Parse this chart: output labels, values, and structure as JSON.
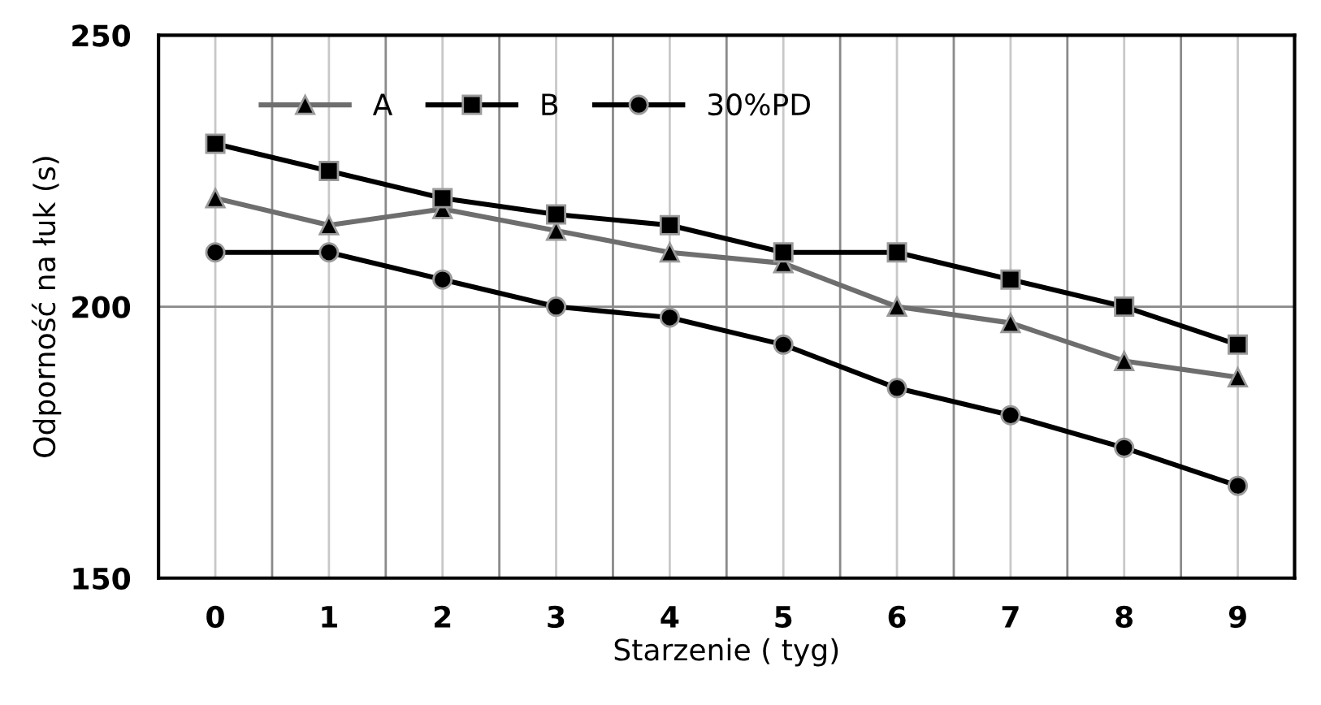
{
  "chart_data": {
    "type": "line",
    "xlabel": "Starzenie ( tyg)",
    "ylabel": "Odporność na łuk (s)",
    "categories": [
      "0",
      "1",
      "2",
      "3",
      "4",
      "5",
      "6",
      "7",
      "8",
      "9"
    ],
    "series": [
      {
        "name": "A",
        "color": "#6e6e6e",
        "marker": "triangle",
        "values": [
          220,
          215,
          218,
          214,
          210,
          208,
          200,
          197,
          190,
          187
        ]
      },
      {
        "name": "B",
        "color": "#000000",
        "marker": "square",
        "values": [
          230,
          225,
          220,
          217,
          215,
          210,
          210,
          205,
          200,
          193
        ]
      },
      {
        "name": "30%PD",
        "color": "#000000",
        "marker": "circle",
        "values": [
          210,
          210,
          205,
          200,
          198,
          193,
          185,
          180,
          174,
          167
        ]
      }
    ],
    "ylim": [
      150,
      250
    ],
    "yticks": [
      150,
      200,
      250
    ],
    "grid": true,
    "legend": "top left",
    "line_style": "solid"
  }
}
